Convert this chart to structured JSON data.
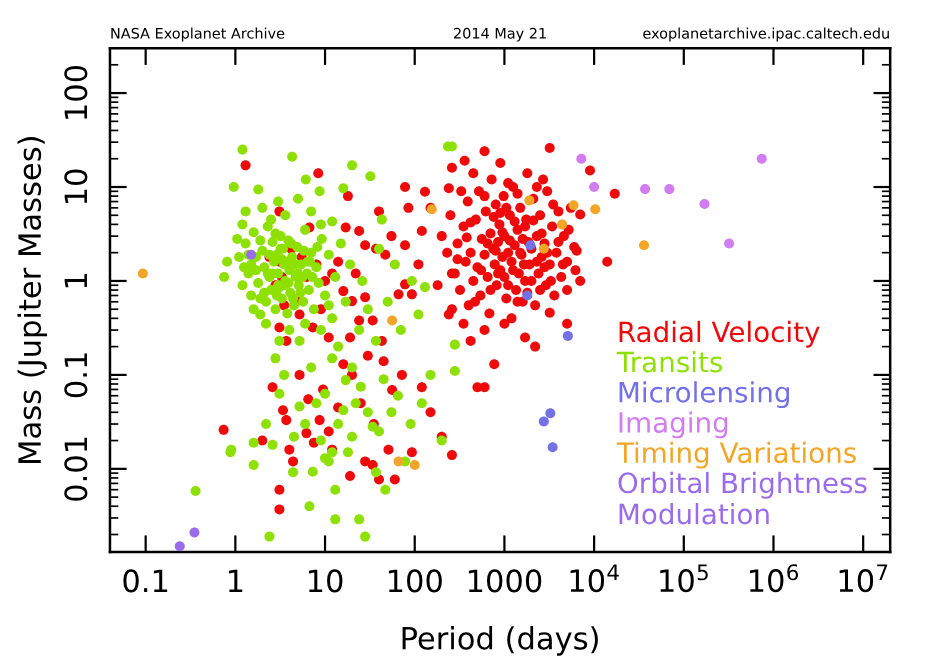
{
  "chart_data": {
    "type": "scatter",
    "xlabel": "Period (days)",
    "ylabel": "Mass (Jupiter Masses)",
    "annotations": [
      "NASA Exoplanet Archive",
      "2014 May 21",
      "exoplanetarchive.ipac.caltech.edu"
    ],
    "log": "xy",
    "xlim": [
      0.04,
      20000000
    ],
    "ylim": [
      0.0013,
      300
    ],
    "xticks": [
      0.1,
      1,
      10,
      100,
      1000,
      {
        "value": 10000,
        "label": "10$^{4}$"
      },
      {
        "value": 100000,
        "label": "10$^{5}$"
      },
      {
        "value": 1000000,
        "label": "10$^{6}$"
      },
      {
        "value": 10000000,
        "label": "10$^{7}$"
      }
    ],
    "yticks": [
      0.01,
      0.1,
      1,
      10,
      100
    ],
    "legend": "bottom right",
    "marker": "circle",
    "series": [
      {
        "name": "Radial Velocity",
        "color": "#ee0a0a",
        "x": [
          250,
          280,
          300,
          320,
          350,
          370,
          390,
          400,
          420,
          450,
          480,
          500,
          520,
          540,
          560,
          600,
          620,
          650,
          680,
          700,
          720,
          750,
          780,
          800,
          820,
          850,
          880,
          900,
          950,
          980,
          1000,
          1050,
          1100,
          1150,
          1200,
          1250,
          1300,
          1350,
          1400,
          1450,
          1500,
          1550,
          1600,
          1700,
          1750,
          1800,
          1900,
          2000,
          2100,
          2200,
          2300,
          2400,
          2500,
          2600,
          2800,
          2900,
          3000,
          3200,
          3400,
          3600,
          3800,
          4000,
          4300,
          4600,
          5000,
          5500,
          6000,
          7000,
          350,
          600,
          1200,
          1600,
          450,
          900,
          1100,
          2700,
          330,
          260,
          230,
          200,
          180,
          150,
          300,
          420,
          550,
          650,
          700,
          760,
          850,
          950,
          1000,
          1050,
          1150,
          1250,
          1300,
          1400,
          1500,
          1650,
          1700,
          1850,
          2000,
          2100,
          2300,
          2500,
          2600,
          3000,
          3300,
          3500,
          4000,
          4500,
          5200,
          6200,
          800,
          1100,
          1800,
          2800,
          600,
          1400,
          2300,
          380,
          470,
          900,
          3200,
          9000,
          17000,
          14000,
          6400,
          5000,
          2200,
          770,
          500,
          5000,
          3200,
          1700,
          1000,
          600,
          360,
          260,
          240,
          78,
          130,
          85,
          120,
          78,
          93,
          260,
          240,
          420,
          600,
          7000,
          1.3,
          8.4,
          3.1,
          6.7,
          17,
          24,
          2.4,
          3.1,
          6.2,
          10,
          12,
          16,
          20,
          28,
          34,
          43,
          3.1,
          3.7,
          5.2,
          7.3,
          11,
          19,
          24,
          47,
          66,
          78,
          28,
          37,
          4.8,
          8,
          14,
          2.8,
          3.5,
          4.2,
          5.5,
          3.3,
          9,
          22,
          55,
          40,
          110,
          18,
          0.74,
          2,
          3.1,
          3.1,
          4,
          4.4,
          6.2,
          8.7,
          12,
          19,
          28,
          40,
          60,
          51,
          93,
          200,
          260,
          34,
          3.4,
          2.6,
          5.2,
          20,
          56,
          72,
          120,
          3.7,
          6.5,
          9.5,
          14,
          25,
          35,
          45,
          16,
          11,
          7.5,
          150,
          30
        ],
        "values": [
          5,
          1.2,
          2.5,
          0.8,
          3.8,
          1.6,
          7,
          0.55,
          2,
          1,
          4.5,
          1.4,
          9,
          0.7,
          2.8,
          1.9,
          5.5,
          1.1,
          0.45,
          3.2,
          12,
          2.2,
          1.5,
          6.5,
          0.9,
          2.6,
          4,
          1.3,
          1.8,
          8,
          3,
          0.65,
          2,
          5,
          1.6,
          10,
          2.4,
          0.8,
          3.5,
          1.2,
          6,
          1.9,
          2.8,
          1,
          4.5,
          14,
          1.5,
          2.2,
          7.5,
          0.55,
          3,
          1.2,
          5,
          1.8,
          2.5,
          0.9,
          9,
          1.5,
          3.8,
          0.7,
          2,
          5.5,
          1.1,
          3,
          1.6,
          6,
          2.3,
          1,
          0.35,
          0.3,
          0.4,
          0.6,
          14,
          18,
          11,
          12,
          9,
          0.5,
          2,
          3,
          0.9,
          6,
          1.7,
          4.2,
          1.3,
          2.5,
          0.8,
          4.8,
          1.2,
          3.3,
          1.1,
          6,
          2.7,
          1.3,
          4.3,
          0.6,
          2,
          1.5,
          3.8,
          2.6,
          1,
          4.4,
          1.6,
          0.8,
          3.2,
          2,
          1,
          6.5,
          2.6,
          1.5,
          3.5,
          1.3,
          2.1,
          0.9,
          0.75,
          1.4,
          8,
          8.5,
          10,
          2.9,
          0.6,
          5.3,
          26,
          15,
          8.5,
          1.6,
          2.1,
          0.8,
          0.2,
          0.13,
          0.074,
          0.35,
          0.46,
          0.25,
          0.35,
          24,
          19,
          16,
          9.7,
          10,
          8.9,
          6,
          3.4,
          2.4,
          0.72,
          1.2,
          0.44,
          0.23,
          0.074,
          5.1,
          17,
          14,
          5.5,
          3.7,
          3.7,
          3.4,
          1.8,
          1.6,
          1.1,
          1,
          1.2,
          0.78,
          0.61,
          0.67,
          0.38,
          0.23,
          0.32,
          0.23,
          0.44,
          0.32,
          0.25,
          0.25,
          0.38,
          1.9,
          0.72,
          0.92,
          2.4,
          2.2,
          0.61,
          1.5,
          1.6,
          0.9,
          0.55,
          2.2,
          1.8,
          1.1,
          0.5,
          1.2,
          3,
          5.5,
          1.5,
          8,
          0.026,
          0.02,
          0.006,
          0.0037,
          0.016,
          0.012,
          0.024,
          0.033,
          0.016,
          0.0084,
          0.012,
          0.0077,
          0.0077,
          0.016,
          0.015,
          0.022,
          0.014,
          0.011,
          0.042,
          0.074,
          0.1,
          0.1,
          0.069,
          0.1,
          0.074,
          0.033,
          0.055,
          0.07,
          0.045,
          0.05,
          0.03,
          0.14,
          0.13,
          0.025,
          0.019,
          0.04,
          0.16
        ]
      },
      {
        "name": "Transits",
        "color": "#8ee000",
        "x": [
          1.2,
          4.3,
          0.96,
          1.8,
          3,
          6.1,
          8.7,
          16,
          20,
          32,
          43,
          12,
          1.2,
          0.81,
          0.75,
          1.9,
          3.1,
          5.2,
          14,
          24,
          37,
          130,
          93,
          110,
          280,
          280,
          235,
          260,
          1.3,
          1.4,
          1.5,
          1.6,
          1.7,
          1.8,
          2,
          2.1,
          2.2,
          2.3,
          2.4,
          2.5,
          2.6,
          2.7,
          2.8,
          2.9,
          3,
          3.1,
          3.2,
          3.3,
          3.4,
          3.5,
          3.6,
          3.8,
          3.9,
          4,
          4.1,
          4.3,
          4.5,
          4.7,
          4.9,
          5.1,
          5.4,
          5.7,
          6,
          6.3,
          6.6,
          7,
          7.5,
          8,
          8.5,
          9.2,
          10,
          11,
          12,
          13,
          15,
          17,
          19,
          1.1,
          1.2,
          1.3,
          2,
          2.5,
          3.6,
          5,
          7,
          9,
          1.05,
          1.6,
          2.2,
          4,
          6,
          9,
          11,
          26,
          30,
          50,
          60,
          70,
          40,
          1.5,
          1.9,
          2.1,
          2.4,
          2.6,
          2.9,
          3.2,
          3.5,
          3.7,
          4.2,
          4.6,
          5,
          5.3,
          5.8,
          6.4,
          7.2,
          1.4,
          1.7,
          2.3,
          2.8,
          3.3,
          3.9,
          4.4,
          5.6,
          6.8,
          8.2,
          1.25,
          1.9,
          3,
          0.36,
          0.88,
          0.9,
          1.6,
          1.6,
          2.6,
          2.4,
          6.7,
          13,
          24,
          28,
          4.4,
          7.3,
          11,
          12,
          13,
          37,
          47,
          200,
          78,
          34,
          20,
          16,
          3.1,
          5.2,
          10,
          17,
          2.2,
          4.5,
          6,
          8,
          9,
          10,
          14,
          18,
          22,
          25,
          30,
          40,
          55,
          65,
          90,
          120,
          150,
          7,
          12,
          20,
          45,
          3.5,
          2.8
        ],
        "values": [
          25,
          21,
          10,
          9.4,
          7,
          12,
          9,
          9.7,
          17,
          13,
          4.5,
          4.3,
          4,
          1.6,
          1.1,
          0.44,
          0.23,
          0.23,
          0.2,
          0.3,
          0.23,
          0.86,
          1,
          0.44,
          0.21,
          0.11,
          27,
          27,
          2.5,
          1.2,
          0.7,
          3.3,
          1.8,
          0.95,
          2.1,
          1.4,
          0.6,
          3.8,
          1.1,
          0.8,
          2.6,
          1.6,
          0.5,
          1.9,
          1.2,
          0.85,
          3,
          0.65,
          2.2,
          1.5,
          1,
          0.45,
          2.7,
          1.3,
          0.75,
          1.8,
          0.55,
          1.1,
          2.3,
          0.9,
          1.5,
          0.6,
          3.5,
          1.2,
          0.8,
          2,
          0.5,
          1.4,
          0.95,
          2.8,
          0.7,
          1.9,
          0.4,
          1.1,
          2.5,
          0.6,
          1.5,
          1.8,
          0.9,
          5.5,
          6,
          4.5,
          5,
          7.5,
          5.5,
          4,
          2.8,
          0.5,
          0.35,
          0.3,
          0.35,
          0.3,
          0.55,
          1,
          0.5,
          0.6,
          1.5,
          0.3,
          2.2,
          1.5,
          2.7,
          0.75,
          1.9,
          1.2,
          0.7,
          2.2,
          0.9,
          1.6,
          2.5,
          1.5,
          1.2,
          0.75,
          2.1,
          1.6,
          1.1,
          1.9,
          1.3,
          1.2,
          3.2,
          1.7,
          0.95,
          0.65,
          1.1,
          1.6,
          2.3,
          1.4,
          0.65,
          0.9,
          0.0058,
          0.015,
          0.016,
          0.019,
          0.011,
          0.018,
          0.0019,
          0.004,
          0.0029,
          0.0029,
          0.0019,
          0.0092,
          0.0093,
          0.012,
          0.015,
          0.006,
          0.0092,
          0.006,
          0.02,
          0.012,
          0.028,
          0.022,
          0.042,
          0.063,
          0.046,
          0.063,
          0.088,
          0.03,
          0.022,
          0.03,
          0.05,
          0.02,
          0.013,
          0.03,
          0.015,
          0.05,
          0.075,
          0.04,
          0.025,
          0.04,
          0.06,
          0.03,
          0.05,
          0.1,
          0.12,
          0.15,
          0.12,
          0.09,
          0.1,
          0.15
        ]
      },
      {
        "name": "Microlensing",
        "color": "#7470e6",
        "x": [
          1950,
          1800,
          5100,
          3250,
          2750,
          3450
        ],
        "values": [
          2.4,
          0.7,
          0.26,
          0.039,
          0.032,
          0.017
        ]
      },
      {
        "name": "Imaging",
        "color": "#d27cf2",
        "x": [
          7200,
          740000,
          10000,
          37000,
          69000,
          170000,
          320000
        ],
        "values": [
          20,
          20,
          10,
          9.5,
          9.5,
          6.6,
          2.5
        ]
      },
      {
        "name": "Timing Variations",
        "color": "#f2a526",
        "x": [
          0.093,
          56,
          155,
          1900,
          5900,
          10300,
          4400,
          2750,
          36000,
          66,
          100
        ],
        "values": [
          1.2,
          0.38,
          5.8,
          7.2,
          6.4,
          5.8,
          4,
          2.2,
          2.4,
          0.012,
          0.011
        ]
      },
      {
        "name": "Orbital Brightness\nModulation",
        "color": "#9a6cec",
        "x": [
          1.5,
          0.35,
          0.24
        ],
        "values": [
          1.9,
          0.0021,
          0.0015
        ]
      }
    ]
  }
}
